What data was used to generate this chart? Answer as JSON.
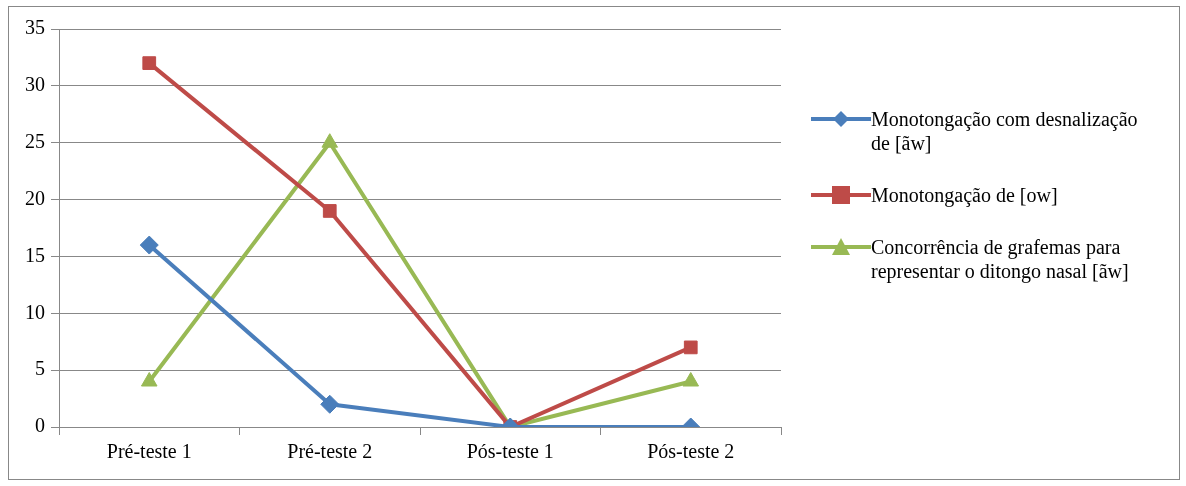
{
  "chart_data": {
    "type": "line",
    "categories": [
      "Pré-teste 1",
      "Pré-teste 2",
      "Pós-teste 1",
      "Pós-teste 2"
    ],
    "series": [
      {
        "name": "Monotongação com desnalização de [ãw]",
        "color": "#4a7ebb",
        "marker": "diamond",
        "values": [
          16,
          2,
          0,
          0
        ]
      },
      {
        "name": "Monotongação de [ow]",
        "color": "#be4b48",
        "marker": "square",
        "values": [
          32,
          19,
          0,
          7
        ]
      },
      {
        "name": "Concorrência de grafemas para representar o ditongo nasal [ãw]",
        "color": "#98b954",
        "marker": "triangle",
        "values": [
          4,
          25,
          0,
          4
        ]
      }
    ],
    "ylim": [
      0,
      35
    ],
    "yticks": [
      0,
      5,
      10,
      15,
      20,
      25,
      30,
      35
    ],
    "grid": "y",
    "legend": "right",
    "line_style": "solid"
  }
}
